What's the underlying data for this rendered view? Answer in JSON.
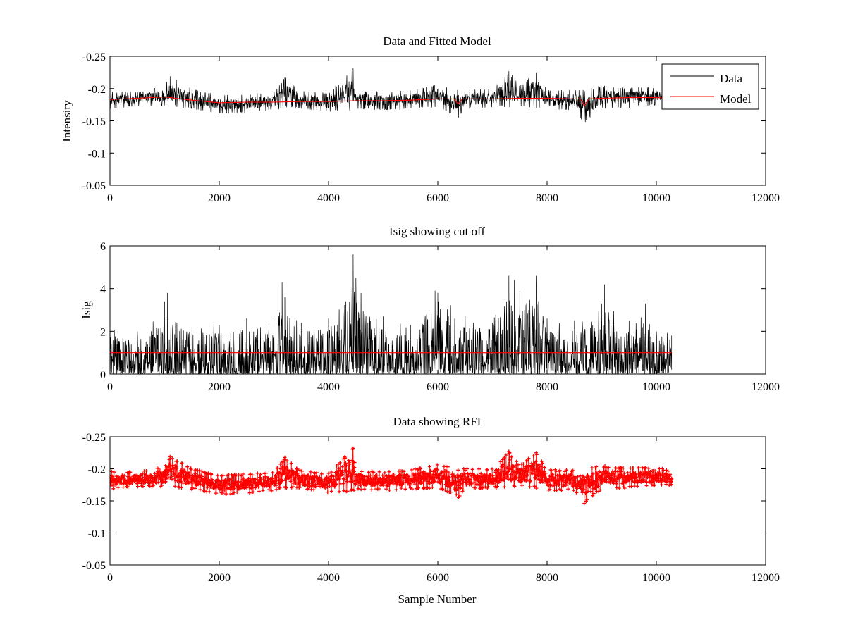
{
  "figure": {
    "background": "#ffffff",
    "colors": {
      "data": "#000000",
      "model": "#ff0000",
      "rfi": "#ff0000"
    }
  },
  "chart_data": [
    {
      "type": "line",
      "title": "Data and Fitted Model",
      "xlabel": "",
      "ylabel": "Intensity",
      "xlim": [
        0,
        12000
      ],
      "ylim": [
        -0.25,
        -0.05
      ],
      "y_reversed": true,
      "xticks": [
        0,
        2000,
        4000,
        6000,
        8000,
        10000,
        12000
      ],
      "yticks": [
        -0.25,
        -0.2,
        -0.15,
        -0.1,
        -0.05
      ],
      "xtick_labels": [
        "0",
        "2000",
        "4000",
        "6000",
        "8000",
        "10000",
        "12000"
      ],
      "ytick_labels": [
        "-0.25",
        "-0.2",
        "-0.15",
        "-0.1",
        "-0.05"
      ],
      "legend": {
        "position": "top-right",
        "entries": [
          "Data",
          "Model"
        ]
      },
      "series": [
        {
          "name": "Data",
          "color": "#000000",
          "n_samples": 10280,
          "x": [
            0,
            500,
            1000,
            1100,
            1500,
            2000,
            2500,
            3000,
            3200,
            3500,
            4000,
            4450,
            4500,
            5000,
            5500,
            6000,
            6380,
            6500,
            7000,
            7300,
            7500,
            7800,
            8000,
            8500,
            8680,
            9000,
            9500,
            10000,
            10280
          ],
          "y": [
            -0.182,
            -0.183,
            -0.188,
            -0.219,
            -0.186,
            -0.176,
            -0.178,
            -0.181,
            -0.215,
            -0.183,
            -0.179,
            -0.232,
            -0.182,
            -0.181,
            -0.182,
            -0.187,
            -0.155,
            -0.184,
            -0.185,
            -0.227,
            -0.187,
            -0.225,
            -0.183,
            -0.183,
            -0.146,
            -0.185,
            -0.186,
            -0.186,
            -0.184
          ],
          "band_low": [
            -0.196,
            -0.195,
            -0.205,
            -0.22,
            -0.2,
            -0.19,
            -0.192,
            -0.195,
            -0.218,
            -0.197,
            -0.193,
            -0.233,
            -0.198,
            -0.196,
            -0.198,
            -0.208,
            -0.2,
            -0.2,
            -0.2,
            -0.228,
            -0.205,
            -0.226,
            -0.199,
            -0.198,
            -0.2,
            -0.205,
            -0.202,
            -0.203,
            -0.196
          ],
          "band_high": [
            -0.168,
            -0.172,
            -0.172,
            -0.172,
            -0.168,
            -0.16,
            -0.162,
            -0.166,
            -0.17,
            -0.168,
            -0.163,
            -0.165,
            -0.168,
            -0.166,
            -0.168,
            -0.17,
            -0.155,
            -0.168,
            -0.17,
            -0.17,
            -0.172,
            -0.168,
            -0.166,
            -0.166,
            -0.146,
            -0.168,
            -0.17,
            -0.174,
            -0.174
          ]
        },
        {
          "name": "Model",
          "color": "#ff0000",
          "x": [
            0,
            500,
            1000,
            1500,
            2000,
            2500,
            3000,
            3500,
            4000,
            4500,
            5000,
            5500,
            6000,
            6300,
            6370,
            6450,
            7000,
            7500,
            8000,
            8500,
            8620,
            8680,
            8760,
            9000,
            9500,
            10000,
            10280
          ],
          "y": [
            -0.183,
            -0.185,
            -0.187,
            -0.182,
            -0.178,
            -0.179,
            -0.179,
            -0.18,
            -0.18,
            -0.181,
            -0.181,
            -0.182,
            -0.184,
            -0.184,
            -0.176,
            -0.184,
            -0.184,
            -0.185,
            -0.185,
            -0.184,
            -0.184,
            -0.173,
            -0.184,
            -0.185,
            -0.186,
            -0.186,
            -0.185
          ]
        }
      ]
    },
    {
      "type": "line",
      "title": "Isig showing cut off",
      "xlabel": "",
      "ylabel": "Isig",
      "xlim": [
        0,
        12000
      ],
      "ylim": [
        0,
        6
      ],
      "y_reversed": false,
      "xticks": [
        0,
        2000,
        4000,
        6000,
        8000,
        10000,
        12000
      ],
      "yticks": [
        0,
        2,
        4,
        6
      ],
      "xtick_labels": [
        "0",
        "2000",
        "4000",
        "6000",
        "8000",
        "10000",
        "12000"
      ],
      "ytick_labels": [
        "0",
        "2",
        "4",
        "6"
      ],
      "series": [
        {
          "color": "#000000",
          "n_samples": 10280,
          "x": [
            0,
            500,
            1000,
            1050,
            1500,
            2000,
            2500,
            3000,
            3150,
            3200,
            3500,
            4000,
            4450,
            4500,
            5000,
            5500,
            5950,
            6000,
            6500,
            7000,
            7300,
            7400,
            7500,
            7800,
            8000,
            8500,
            9000,
            9050,
            9500,
            9800,
            10000,
            10280
          ],
          "y": [
            2.3,
            2.0,
            3.4,
            3.8,
            2.2,
            2.3,
            2.6,
            2.5,
            4.3,
            3.6,
            2.4,
            2.6,
            5.6,
            4.5,
            2.7,
            2.3,
            3.9,
            3.8,
            2.7,
            2.4,
            4.6,
            4.4,
            3.9,
            4.6,
            2.6,
            2.5,
            3.3,
            4.2,
            2.5,
            3.3,
            2.0,
            1.8
          ],
          "band_high": [
            1.2,
            1.1,
            1.6,
            1.8,
            1.3,
            1.3,
            1.4,
            1.4,
            2.2,
            1.9,
            1.4,
            1.4,
            2.8,
            2.5,
            1.4,
            1.3,
            2.3,
            2.3,
            1.5,
            1.4,
            2.5,
            2.5,
            2.3,
            2.6,
            1.4,
            1.4,
            1.8,
            2.2,
            1.4,
            1.6,
            1.2,
            1.1
          ]
        },
        {
          "name": "cut off",
          "color": "#ff0000",
          "x": [
            0,
            10280
          ],
          "y": [
            1.0,
            1.0
          ]
        }
      ]
    },
    {
      "type": "scatter",
      "title": "Data showing RFI",
      "xlabel": "Sample Number",
      "ylabel": "",
      "xlim": [
        0,
        12000
      ],
      "ylim": [
        -0.25,
        -0.05
      ],
      "y_reversed": true,
      "xticks": [
        0,
        2000,
        4000,
        6000,
        8000,
        10000,
        12000
      ],
      "yticks": [
        -0.25,
        -0.2,
        -0.15,
        -0.1,
        -0.05
      ],
      "xtick_labels": [
        "0",
        "2000",
        "4000",
        "6000",
        "8000",
        "10000",
        "12000"
      ],
      "ytick_labels": [
        "-0.25",
        "-0.2",
        "-0.15",
        "-0.1",
        "-0.05"
      ],
      "series": [
        {
          "color": "#ff0000",
          "marker": "+",
          "n_samples": 10280,
          "x": [
            0,
            500,
            1000,
            1100,
            1500,
            2000,
            2500,
            3000,
            3200,
            3500,
            4000,
            4450,
            4500,
            5000,
            5500,
            6000,
            6380,
            6500,
            7000,
            7300,
            7500,
            7800,
            8000,
            8500,
            8680,
            9000,
            9500,
            10000,
            10280
          ],
          "y": [
            -0.182,
            -0.183,
            -0.188,
            -0.219,
            -0.186,
            -0.176,
            -0.178,
            -0.181,
            -0.215,
            -0.183,
            -0.179,
            -0.232,
            -0.182,
            -0.181,
            -0.182,
            -0.187,
            -0.155,
            -0.184,
            -0.185,
            -0.227,
            -0.187,
            -0.225,
            -0.183,
            -0.183,
            -0.146,
            -0.185,
            -0.186,
            -0.186,
            -0.184
          ],
          "band_low": [
            -0.196,
            -0.195,
            -0.205,
            -0.22,
            -0.2,
            -0.19,
            -0.192,
            -0.195,
            -0.218,
            -0.197,
            -0.193,
            -0.233,
            -0.198,
            -0.196,
            -0.198,
            -0.208,
            -0.2,
            -0.2,
            -0.2,
            -0.228,
            -0.205,
            -0.226,
            -0.199,
            -0.198,
            -0.2,
            -0.205,
            -0.202,
            -0.203,
            -0.196
          ],
          "band_high": [
            -0.168,
            -0.172,
            -0.172,
            -0.172,
            -0.168,
            -0.16,
            -0.162,
            -0.166,
            -0.17,
            -0.168,
            -0.163,
            -0.165,
            -0.168,
            -0.166,
            -0.168,
            -0.17,
            -0.155,
            -0.168,
            -0.17,
            -0.17,
            -0.172,
            -0.168,
            -0.166,
            -0.166,
            -0.146,
            -0.168,
            -0.17,
            -0.174,
            -0.174
          ]
        }
      ]
    }
  ]
}
